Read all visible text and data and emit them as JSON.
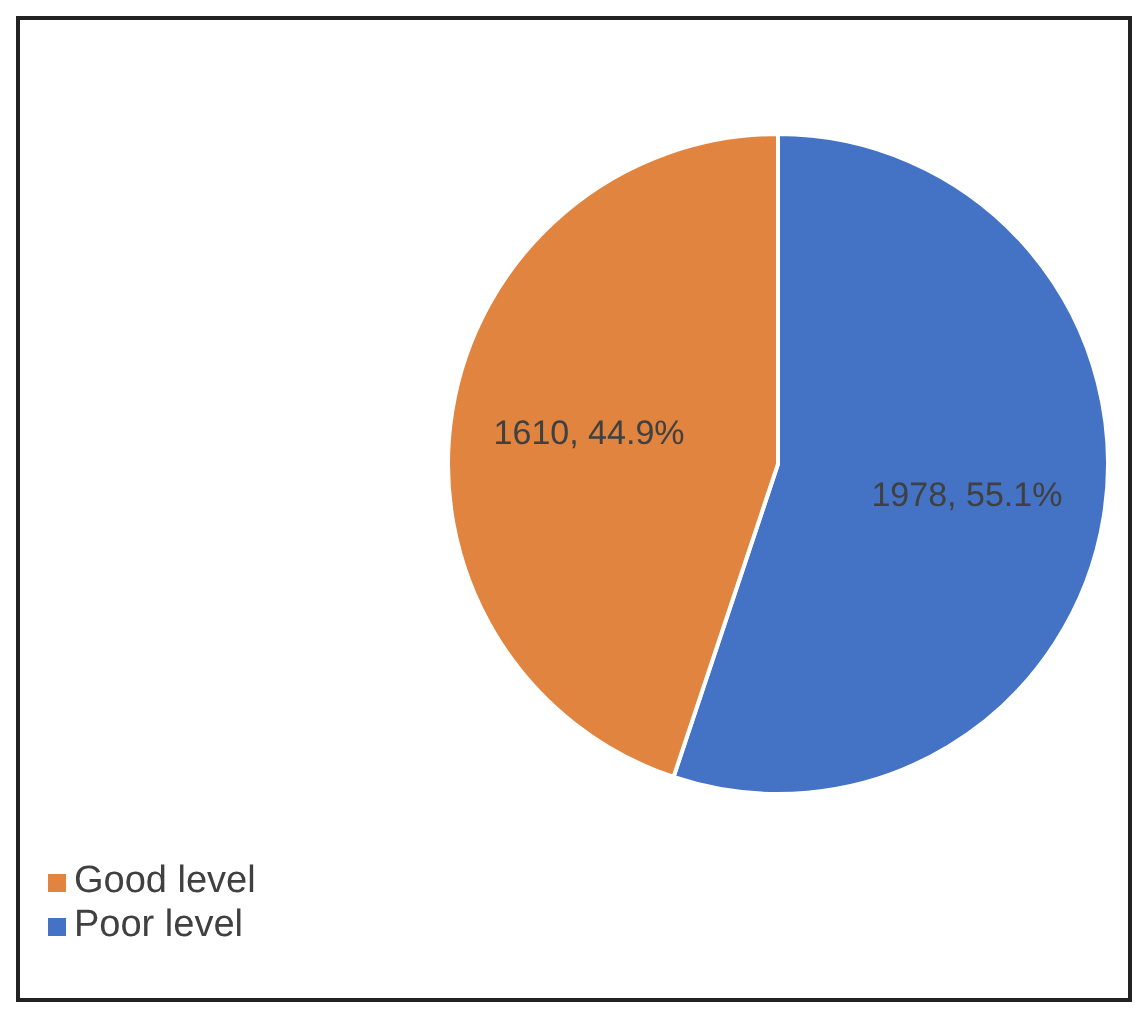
{
  "chart_data": {
    "type": "pie",
    "categories": [
      "Poor level",
      "Good level"
    ],
    "values": [
      1978,
      1610
    ],
    "colors": [
      "#4472c4",
      "#e0843f"
    ],
    "value_labels": [
      "1978, 55.1%",
      "1610, 44.9%"
    ],
    "legend": "bottom"
  }
}
